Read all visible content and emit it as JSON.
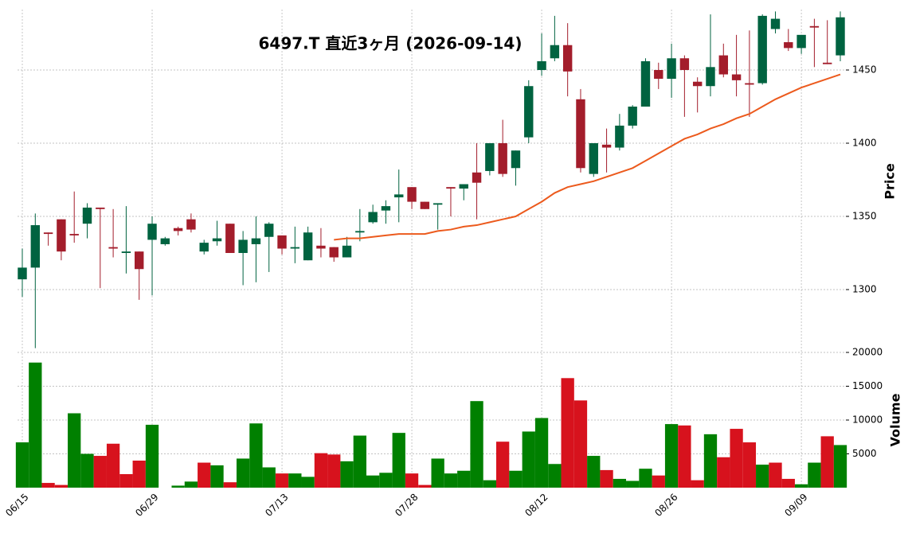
{
  "chart_data": {
    "type": "candlestick",
    "title": "6497.T  直近3ヶ月  (2026-09-14)",
    "ylabel": "Price",
    "categories": [
      "06/15",
      null,
      null,
      null,
      null,
      null,
      null,
      null,
      null,
      null,
      "06/29",
      null,
      null,
      null,
      null,
      null,
      null,
      null,
      null,
      null,
      "07/13",
      null,
      null,
      null,
      null,
      null,
      null,
      null,
      null,
      null,
      "07/28",
      null,
      null,
      null,
      null,
      null,
      null,
      null,
      null,
      null,
      "08/12",
      null,
      null,
      null,
      null,
      null,
      null,
      null,
      null,
      null,
      "08/26",
      null,
      null,
      null,
      null,
      null,
      null,
      null,
      null,
      null,
      "09/09",
      null,
      null,
      null
    ],
    "open": [
      1307,
      1315,
      1339,
      1348,
      1338,
      1345,
      1356,
      1329,
      1325,
      1326,
      1334,
      1331,
      1342,
      1348,
      1326,
      1333,
      1345,
      1325,
      1331,
      1336,
      1337,
      1328,
      1320,
      1330,
      1329,
      1322,
      1339,
      1346,
      1354,
      1363,
      1370,
      1360,
      1358,
      1370,
      1369,
      1380,
      1381,
      1400,
      1383,
      1404,
      1450,
      1458,
      1467,
      1430,
      1379,
      1399,
      1397,
      1412,
      1425,
      1450,
      1444,
      1458,
      1442,
      1439,
      1460,
      1447,
      1441,
      1441,
      1478,
      1469,
      1465,
      1480,
      1455,
      1460
    ],
    "high": [
      1328,
      1352,
      1339,
      1348,
      1367,
      1359,
      1356,
      1355,
      1357,
      1326,
      1350,
      1336,
      1343,
      1352,
      1334,
      1347,
      1345,
      1340,
      1350,
      1346,
      1337,
      1343,
      1343,
      1342,
      1329,
      1336,
      1355,
      1358,
      1361,
      1382,
      1370,
      1360,
      1359,
      1370,
      1372,
      1400,
      1400,
      1416,
      1395,
      1443,
      1475,
      1487,
      1482,
      1437,
      1400,
      1410,
      1420,
      1426,
      1458,
      1455,
      1468,
      1460,
      1445,
      1488,
      1468,
      1474,
      1477,
      1488,
      1490,
      1478,
      1474,
      1485,
      1484,
      1490
    ],
    "low": [
      1295,
      1260,
      1330,
      1320,
      1332,
      1335,
      1301,
      1322,
      1311,
      1293,
      1296,
      1330,
      1337,
      1339,
      1324,
      1330,
      1325,
      1303,
      1305,
      1312,
      1324,
      1318,
      1320,
      1322,
      1319,
      1322,
      1333,
      1345,
      1345,
      1346,
      1355,
      1355,
      1341,
      1350,
      1361,
      1348,
      1378,
      1377,
      1371,
      1400,
      1446,
      1456,
      1432,
      1380,
      1377,
      1380,
      1395,
      1410,
      1425,
      1437,
      1431,
      1418,
      1421,
      1432,
      1445,
      1432,
      1418,
      1440,
      1475,
      1463,
      1461,
      1452,
      1454,
      1456
    ],
    "close": [
      1315,
      1344,
      1338,
      1326,
      1337,
      1356,
      1355,
      1328,
      1326,
      1314,
      1345,
      1335,
      1340,
      1341,
      1332,
      1335,
      1325,
      1334,
      1335,
      1345,
      1328,
      1329,
      1339,
      1328,
      1322,
      1330,
      1340,
      1353,
      1357,
      1365,
      1360,
      1355,
      1359,
      1369,
      1372,
      1373,
      1400,
      1379,
      1395,
      1439,
      1456,
      1467,
      1449,
      1383,
      1400,
      1397,
      1412,
      1425,
      1456,
      1444,
      1458,
      1450,
      1439,
      1452,
      1447,
      1443,
      1440,
      1487,
      1485,
      1465,
      1474,
      1479,
      1454,
      1486
    ],
    "up_color": "#006340",
    "down_color": "#a31d2b",
    "ylim": [
      1258.7,
      1491.3
    ],
    "yticks": [
      1300,
      1350,
      1400,
      1450
    ],
    "grid": true,
    "moving_average": {
      "color": "#ec5a1d",
      "values": [
        null,
        null,
        null,
        null,
        null,
        null,
        null,
        null,
        null,
        null,
        null,
        null,
        null,
        null,
        null,
        null,
        null,
        null,
        null,
        null,
        null,
        null,
        null,
        null,
        1334,
        1335,
        1335,
        1336,
        1337,
        1338,
        1338,
        1338,
        1340,
        1341,
        1343,
        1344,
        1346,
        1348,
        1350,
        1355,
        1360,
        1366,
        1370,
        1372,
        1374,
        1377,
        1380,
        1383,
        1388,
        1393,
        1398,
        1403,
        1406,
        1410,
        1413,
        1417,
        1420,
        1425,
        1430,
        1434,
        1438,
        1441,
        1444,
        1447
      ]
    },
    "volume": {
      "ylabel": "Volume",
      "up_color": "#008000",
      "down_color": "#d7121d",
      "ylim": [
        0,
        20000
      ],
      "yticks": [
        5000,
        10000,
        15000,
        20000
      ],
      "values": [
        6700,
        18500,
        700,
        400,
        11000,
        5000,
        4700,
        6500,
        2000,
        4000,
        9300,
        0,
        300,
        900,
        3700,
        3300,
        800,
        4300,
        9500,
        3000,
        2100,
        2100,
        1600,
        5100,
        4900,
        3900,
        7700,
        1800,
        2200,
        8100,
        2100,
        400,
        4300,
        2100,
        2500,
        12800,
        1100,
        6800,
        2500,
        8300,
        10300,
        3500,
        16200,
        12900,
        4700,
        2600,
        1300,
        1000,
        2800,
        1800,
        9400,
        9200,
        1100,
        7900,
        4500,
        8700,
        6700,
        3400,
        3700,
        1300,
        500,
        3700,
        7600,
        6300
      ]
    }
  }
}
